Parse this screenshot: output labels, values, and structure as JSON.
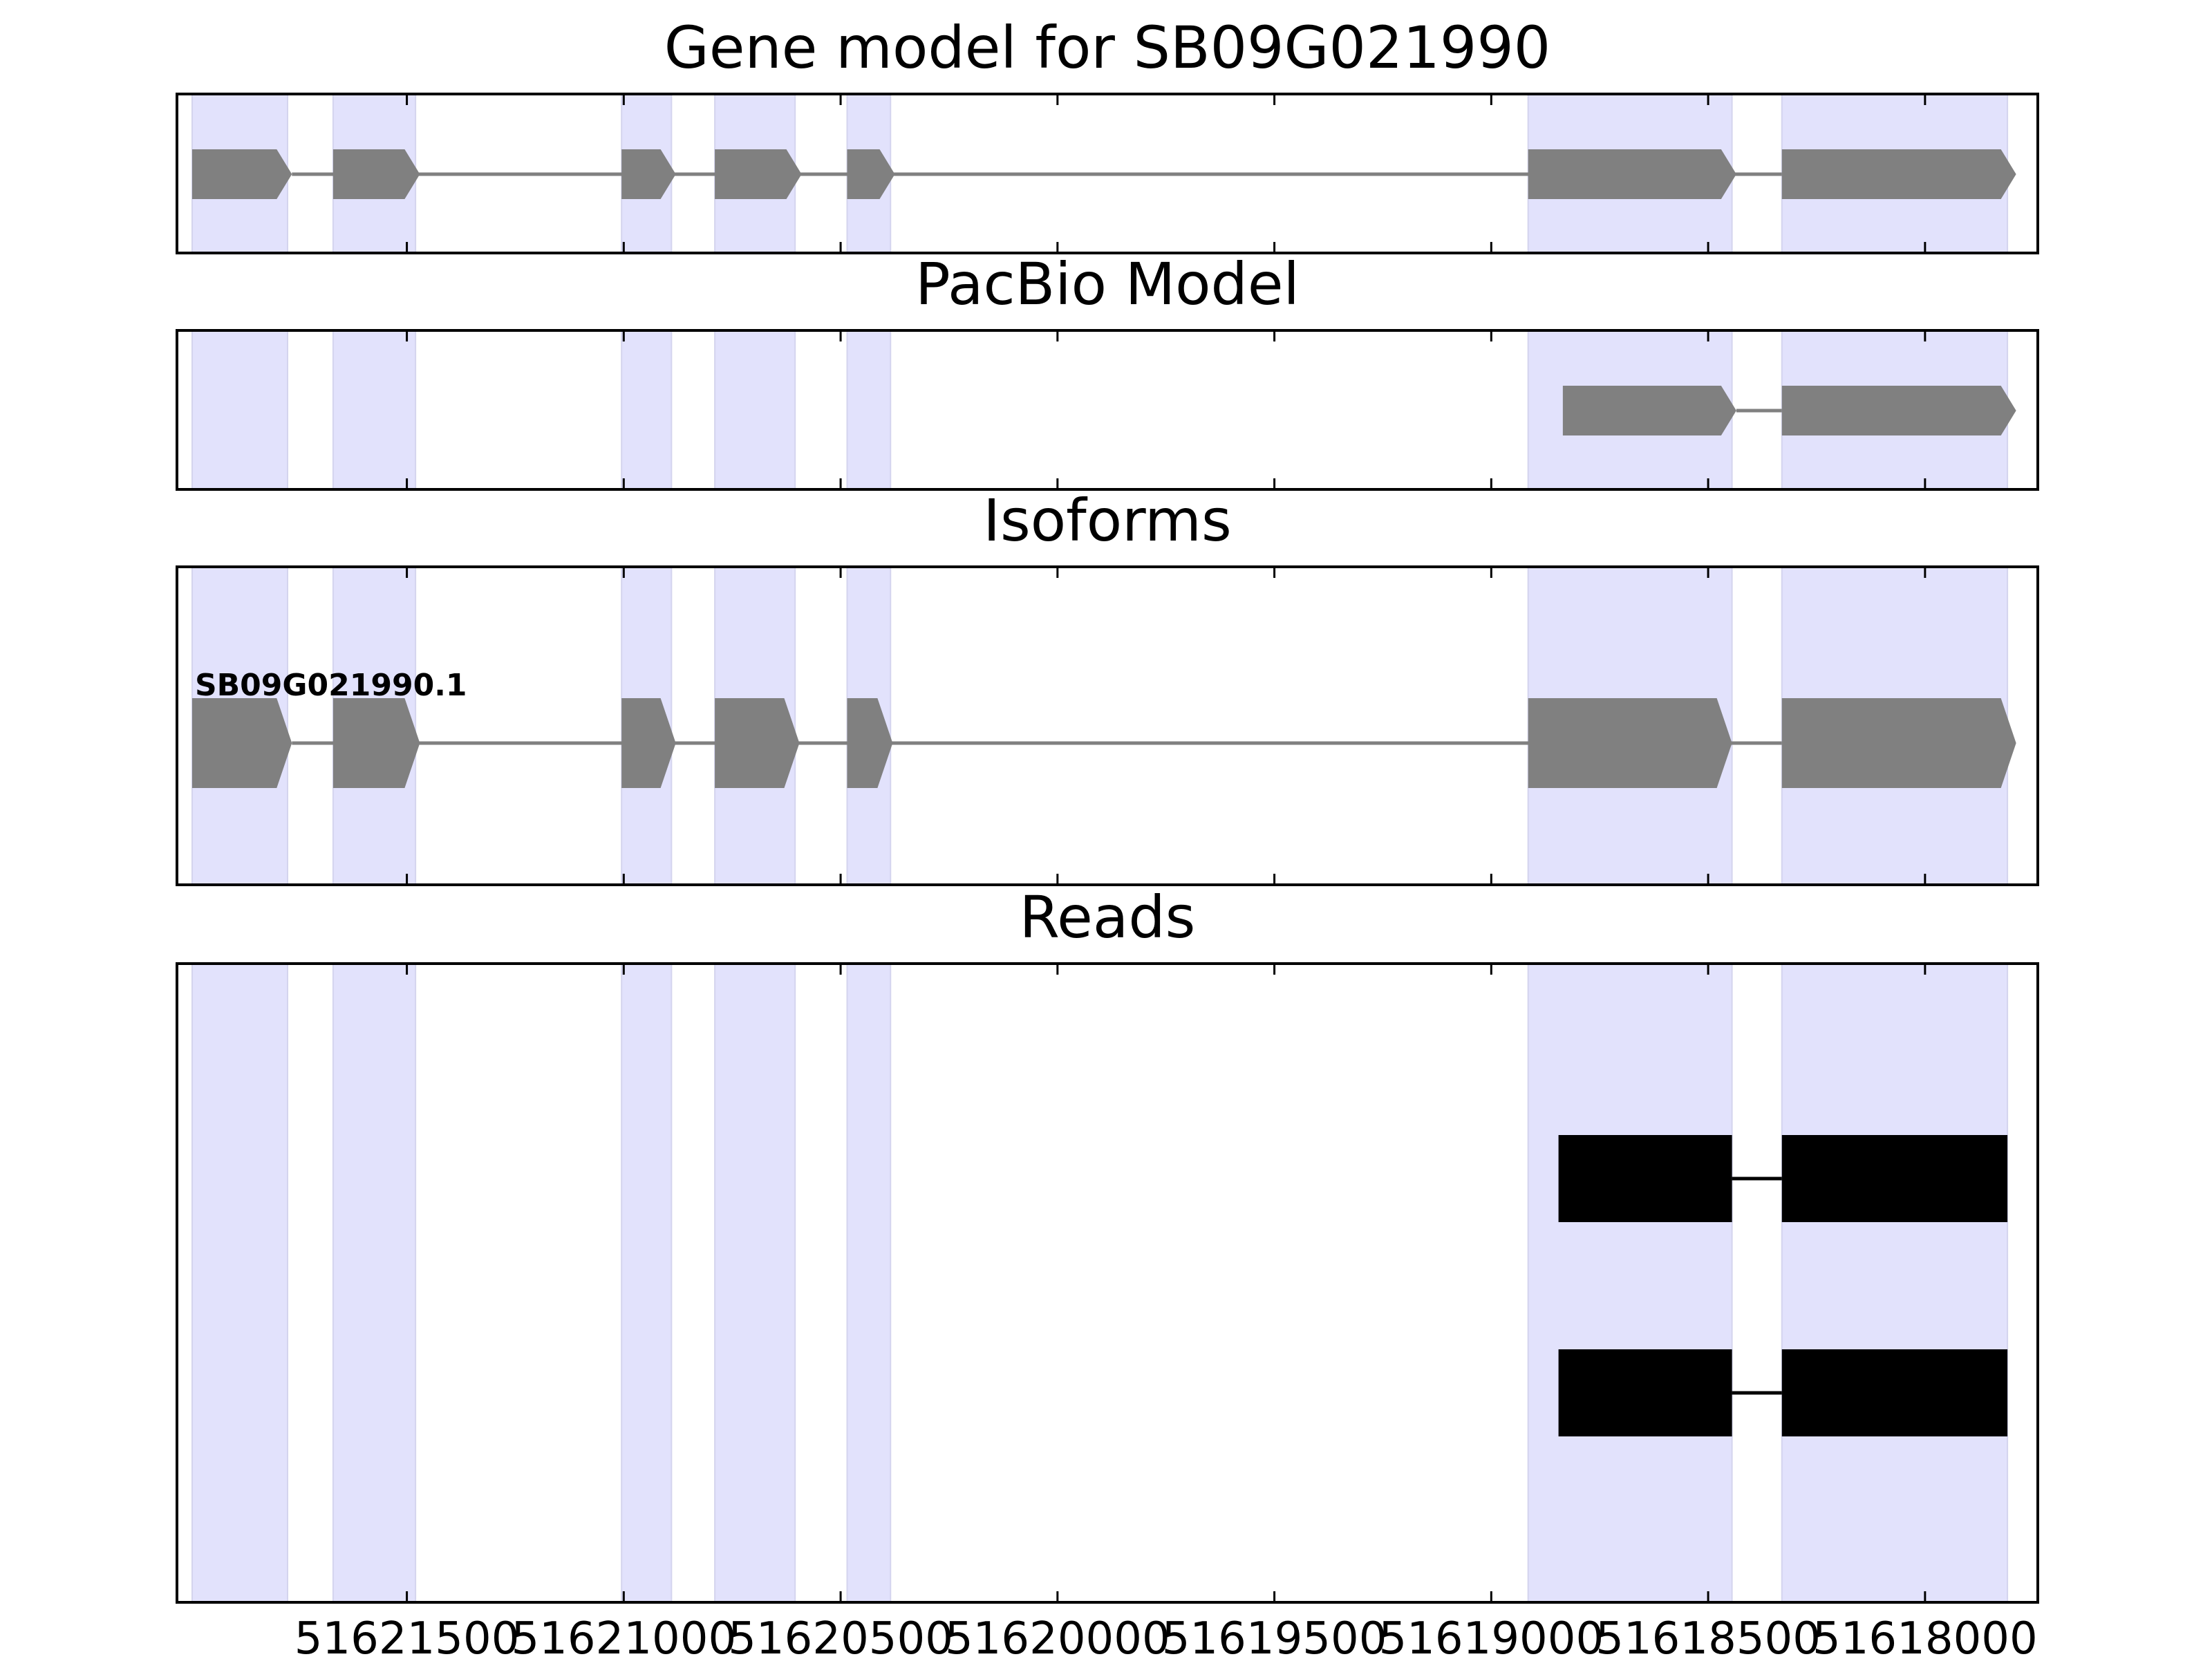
{
  "chart_data": {
    "type": "gene-track",
    "x_axis": {
      "direction": "descending",
      "xlim": [
        51622030,
        51617740
      ],
      "tick_labels": [
        "51621500",
        "51621000",
        "51620500",
        "51620000",
        "51619500",
        "51619000",
        "51618500",
        "51618000"
      ],
      "tick_values": [
        51621500,
        51621000,
        51620500,
        51620000,
        51619500,
        51619000,
        51618500,
        51618000
      ]
    },
    "highlight_regions": [
      [
        51621995,
        51621775
      ],
      [
        51621670,
        51621480
      ],
      [
        51621005,
        51620890
      ],
      [
        51620790,
        51620605
      ],
      [
        51620485,
        51620385
      ],
      [
        51618915,
        51618445
      ],
      [
        51618330,
        51617810
      ]
    ],
    "highlight_color": "#e2e2fc",
    "panels": [
      {
        "id": "gene-model",
        "title": "Gene model for SB09G021990",
        "feature_color": "#808080",
        "transcripts": [
          {
            "label": "",
            "exons": [
              [
                51621995,
                51621765
              ],
              [
                51621670,
                51621470
              ],
              [
                51621005,
                51620880
              ],
              [
                51620790,
                51620590
              ],
              [
                51620485,
                51620375
              ],
              [
                51618915,
                51618435
              ],
              [
                51618330,
                51617790
              ]
            ]
          }
        ]
      },
      {
        "id": "pacbio-model",
        "title": "PacBio Model",
        "feature_color": "#808080",
        "transcripts": [
          {
            "label": "",
            "exons": [
              [
                51618835,
                51618435
              ],
              [
                51618330,
                51617790
              ]
            ]
          }
        ]
      },
      {
        "id": "isoforms",
        "title": "Isoforms",
        "feature_color": "#808080",
        "transcripts": [
          {
            "label": "SB09G021990.1",
            "exons": [
              [
                51621995,
                51621765
              ],
              [
                51621670,
                51621470
              ],
              [
                51621005,
                51620880
              ],
              [
                51620790,
                51620595
              ],
              [
                51620485,
                51620380
              ],
              [
                51618915,
                51618445
              ],
              [
                51618330,
                51617790
              ]
            ]
          }
        ]
      },
      {
        "id": "reads",
        "title": "Reads",
        "feature_color": "#000000",
        "reads": [
          {
            "exons": [
              [
                51618845,
                51618445
              ],
              [
                51618330,
                51617810
              ]
            ]
          },
          {
            "exons": [
              [
                51618845,
                51618445
              ],
              [
                51618330,
                51617810
              ]
            ]
          }
        ]
      }
    ]
  }
}
